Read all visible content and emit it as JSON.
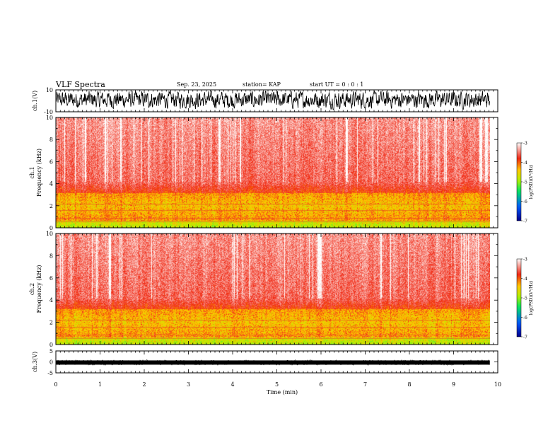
{
  "header": {
    "title": "VLF Spectra",
    "date": "Sep. 23, 2025",
    "station": "station= KAP",
    "start_ut": "start UT =  0 : 0 : 1"
  },
  "chart_data": [
    {
      "type": "line",
      "name": "ch1-waveform",
      "ylabel": "ch.1(V)",
      "ylim": [
        -10,
        10
      ],
      "yticks": [
        10,
        -10
      ],
      "xlim": [
        0,
        10
      ],
      "data_end_min": 9.82
    },
    {
      "type": "heatmap",
      "name": "ch1-spectrogram",
      "ylabel": "ch.1\nFrequency (kHz)",
      "ylim": [
        0,
        10
      ],
      "yticks": [
        0,
        2,
        4,
        6,
        8,
        10
      ],
      "xlim": [
        0,
        10
      ],
      "colorbar": {
        "label": "log(PSD)(V²/Hz)",
        "range": [
          -7,
          -3
        ],
        "ticks": [
          -3,
          -4,
          -5,
          -6,
          -7
        ]
      }
    },
    {
      "type": "heatmap",
      "name": "ch2-spectrogram",
      "ylabel": "ch.2\nFrequency (kHz)",
      "ylim": [
        0,
        10
      ],
      "yticks": [
        0,
        2,
        4,
        6,
        8,
        10
      ],
      "xlim": [
        0,
        10
      ],
      "colorbar": {
        "label": "log(PSD)(V²/Hz)",
        "range": [
          -7,
          -3
        ],
        "ticks": [
          -3,
          -4,
          -5,
          -6,
          -7
        ]
      }
    },
    {
      "type": "line",
      "name": "ch3-waveform",
      "ylabel": "ch.3(V)",
      "ylim": [
        -5,
        5
      ],
      "yticks": [
        5,
        0,
        -5
      ],
      "xlim": [
        0,
        10
      ],
      "xlabel": "Time (min)",
      "xticks": [
        0,
        1,
        2,
        3,
        4,
        5,
        6,
        7,
        8,
        9,
        10
      ],
      "level_v": -0.3
    }
  ]
}
